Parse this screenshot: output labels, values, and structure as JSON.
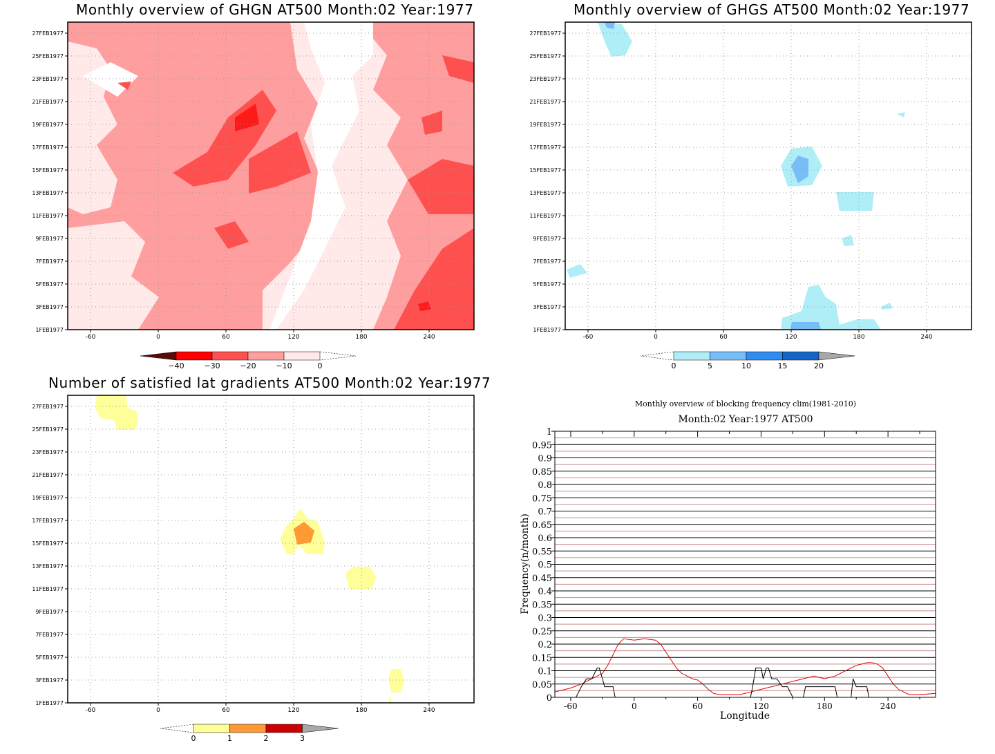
{
  "panels": {
    "ghgn": {
      "title": "Monthly overview of GHGN AT500 Month:02 Year:1977",
      "colorbar": {
        "labels": [
          "−40",
          "−30",
          "−20",
          "−10",
          "0"
        ],
        "colors": [
          "#5b0a0a",
          "#ff0000",
          "#ff5050",
          "#ff9e9e",
          "#ffe9e9"
        ]
      }
    },
    "ghgs": {
      "title": "Monthly overview of GHGS AT500 Month:02 Year:1977",
      "colorbar": {
        "labels": [
          "0",
          "5",
          "10",
          "15",
          "20"
        ],
        "colors": [
          "#b0eef7",
          "#77bdf7",
          "#2f8cf0",
          "#1565c8",
          "#a8a8a8"
        ]
      }
    },
    "gradients": {
      "title": "Number of satisfied lat gradients AT500 Month:02 Year:1977",
      "colorbar": {
        "labels": [
          "0",
          "1",
          "2",
          "3"
        ],
        "colors": [
          "#ffff99",
          "#ff9933",
          "#cc0000",
          "#a8a8a8"
        ]
      }
    },
    "blocking": {
      "title": "Monthly overview of blocking frequency clim(1981-2010)",
      "subtitle": "Month:02 Year:1977  AT500"
    }
  },
  "hovmoller_axes": {
    "x_ticks": [
      "-60",
      "0",
      "60",
      "120",
      "180",
      "240"
    ],
    "y_ticks": [
      "1FEB1977",
      "3FEB1977",
      "5FEB1977",
      "7FEB1977",
      "9FEB1977",
      "11FEB1977",
      "13FEB1977",
      "15FEB1977",
      "17FEB1977",
      "19FEB1977",
      "21FEB1977",
      "23FEB1977",
      "25FEB1977",
      "27FEB1977"
    ]
  },
  "chart_data": [
    {
      "type": "heatmap",
      "title": "Monthly overview of GHGN AT500 Month:02 Year:1977",
      "x_range": [
        -80,
        280
      ],
      "y_range": [
        "1FEB1977",
        "28FEB1977"
      ],
      "color_levels": [
        -40,
        -30,
        -20,
        -10,
        0
      ],
      "description_of_values": "GHGN mostly between -20 and 0 across domain; minima near -30 to -40 around lon 75, 19-21FEB and lon 235, 2FEB"
    },
    {
      "type": "heatmap",
      "title": "Monthly overview of GHGS AT500 Month:02 Year:1977",
      "x_range": [
        -80,
        280
      ],
      "y_range": [
        "1FEB1977",
        "28FEB1977"
      ],
      "color_levels": [
        0,
        5,
        10,
        15,
        20
      ],
      "description_of_values": "GHGS mostly below 0; small positive patches near lon 125, 15FEB and lon 130, 1FEB"
    },
    {
      "type": "heatmap",
      "title": "Number of satisfied lat gradients AT500 Month:02 Year:1977",
      "x_range": [
        -80,
        280
      ],
      "y_range": [
        "1FEB1977",
        "28FEB1977"
      ],
      "color_levels": [
        0,
        1,
        2,
        3
      ],
      "description_of_values": "Mostly 0; value 1 near lon -40 (26-28FEB), lon 125-145 (15-17FEB), lon 180 (12FEB), lon 210 (3FEB); value 2 near lon 128, 16FEB"
    },
    {
      "type": "line",
      "title": "Monthly overview of blocking frequency clim(1981-2010)",
      "subtitle": "Month:02 Year:1977  AT500",
      "xlabel": "Longitude",
      "ylabel": "Frequency(n/month)",
      "xlim": [
        -75,
        285
      ],
      "ylim": [
        0,
        1
      ],
      "x_ticks": [
        -60,
        0,
        60,
        120,
        180,
        240
      ],
      "y_ticks": [
        0,
        0.05,
        0.1,
        0.15,
        0.2,
        0.25,
        0.3,
        0.35,
        0.4,
        0.45,
        0.5,
        0.55,
        0.6,
        0.65,
        0.7,
        0.75,
        0.8,
        0.85,
        0.9,
        0.95,
        1
      ],
      "y_tick_labels": [
        "0",
        "0.05",
        "0.1",
        "0.15",
        "0.2",
        "0.25",
        "0.3",
        "0.35",
        "0.4",
        "0.45",
        "0.5",
        "0.55",
        "0.6",
        "0.65",
        "0.7",
        "0.75",
        "0.8",
        "0.85",
        "0.9",
        "0.95",
        "1"
      ],
      "series": [
        {
          "color": "#e00000",
          "x": [
            -75,
            -60,
            -50,
            -40,
            -30,
            -25,
            -20,
            -15,
            -10,
            0,
            10,
            20,
            25,
            30,
            35,
            40,
            45,
            50,
            55,
            60,
            65,
            70,
            75,
            80,
            90,
            100,
            110,
            120,
            130,
            140,
            150,
            160,
            170,
            180,
            190,
            200,
            210,
            215,
            220,
            225,
            230,
            235,
            240,
            245,
            250,
            255,
            260,
            270,
            285
          ],
          "y": [
            0.02,
            0.035,
            0.05,
            0.07,
            0.09,
            0.12,
            0.16,
            0.2,
            0.22,
            0.215,
            0.22,
            0.215,
            0.2,
            0.17,
            0.14,
            0.11,
            0.09,
            0.08,
            0.07,
            0.065,
            0.05,
            0.03,
            0.015,
            0.01,
            0.01,
            0.01,
            0.02,
            0.03,
            0.04,
            0.05,
            0.06,
            0.07,
            0.08,
            0.07,
            0.08,
            0.1,
            0.12,
            0.125,
            0.13,
            0.13,
            0.125,
            0.11,
            0.08,
            0.05,
            0.03,
            0.02,
            0.01,
            0.01,
            0.015
          ]
        },
        {
          "color": "#000000",
          "x": [
            -75,
            -55,
            -50,
            -45,
            -40,
            -35,
            -33,
            -30,
            -28,
            -25,
            -22,
            -20,
            -18,
            -15,
            80,
            110,
            112,
            115,
            120,
            122,
            125,
            127,
            130,
            135,
            140,
            145,
            150,
            160,
            162,
            175,
            180,
            190,
            192,
            200,
            205,
            207,
            210,
            212,
            215,
            220,
            222,
            225,
            285
          ],
          "y": [
            0,
            0,
            0.04,
            0.07,
            0.07,
            0.11,
            0.11,
            0.07,
            0.04,
            0.04,
            0.04,
            0.04,
            0,
            0,
            0,
            0,
            0.04,
            0.11,
            0.11,
            0.07,
            0.11,
            0.11,
            0.07,
            0.07,
            0.04,
            0.04,
            0,
            0,
            0.04,
            0.04,
            0.04,
            0.04,
            0,
            0,
            0,
            0.07,
            0.04,
            0.04,
            0.04,
            0.04,
            0,
            0,
            0
          ]
        }
      ]
    }
  ]
}
